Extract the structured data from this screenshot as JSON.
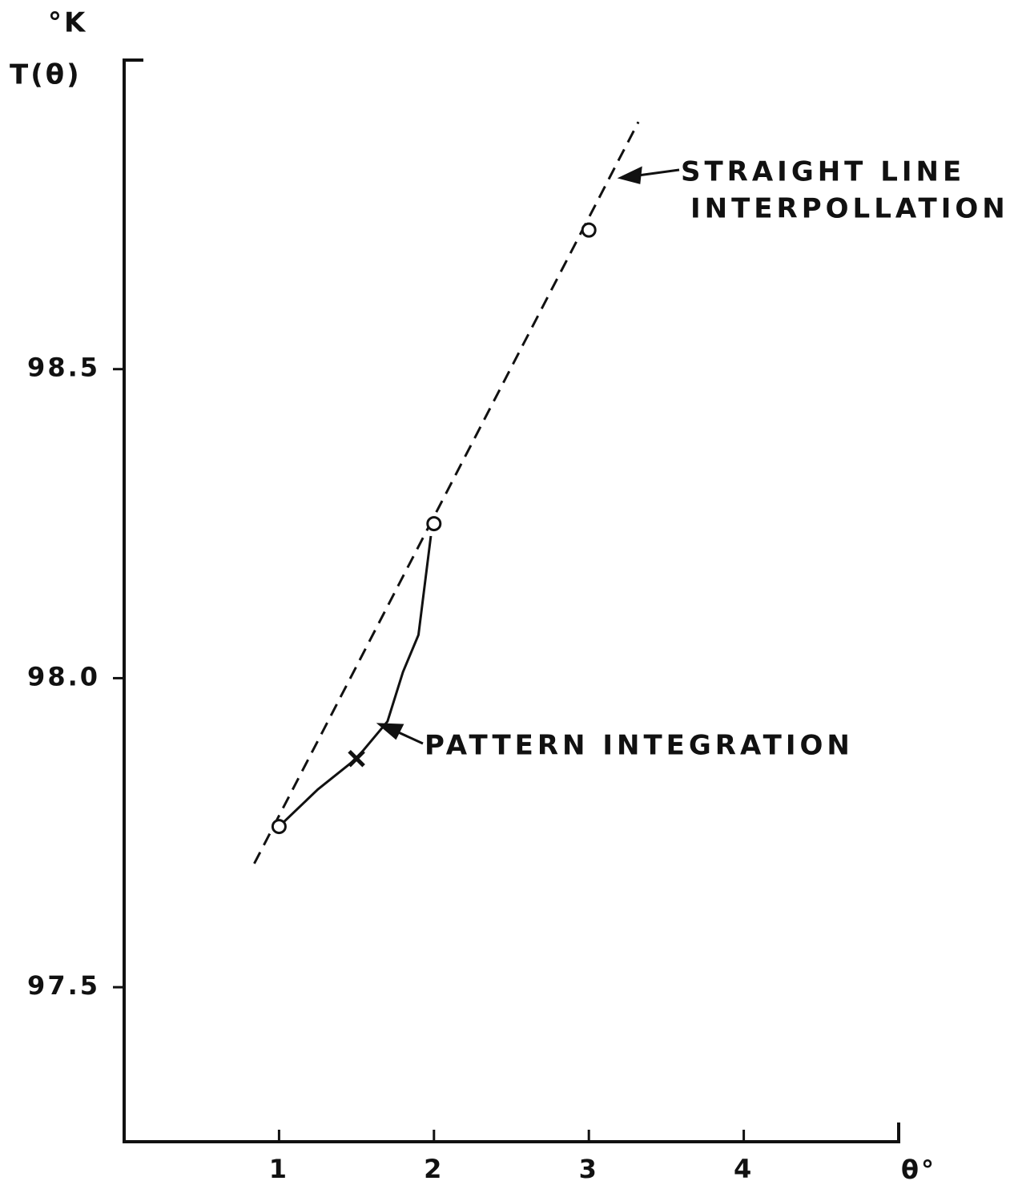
{
  "chart_data": {
    "type": "line",
    "ylabel_unit": "°K",
    "ylabel": "T(θ)",
    "xlabel": "θ°",
    "xlim": [
      0,
      5
    ],
    "xticks": [
      1,
      2,
      3,
      4
    ],
    "ylim": [
      97.25,
      99.0
    ],
    "yticks": [
      97.5,
      {
        "value": 98.0,
        "label": "98.0"
      },
      98.5
    ],
    "grid": false,
    "annotations": [
      "STRAIGHT LINE",
      "INTERPOLLATION",
      "PATTERN INTEGRATION"
    ],
    "series": [
      {
        "style": "dashed",
        "color": "#111",
        "x": [
          0.84,
          3.32
        ],
        "values": [
          97.7,
          98.9
        ]
      },
      {
        "style": "solid",
        "color": "#111",
        "x": [
          1,
          1.25,
          1.5,
          1.7,
          1.8,
          1.9,
          1.98
        ],
        "values": [
          97.76,
          97.82,
          97.87,
          97.93,
          98.01,
          98.07,
          98.23
        ]
      },
      {
        "marker": "circle",
        "color": "#111",
        "x": [
          1,
          2,
          3
        ],
        "values": [
          97.76,
          98.25,
          98.725
        ]
      },
      {
        "marker": "x",
        "color": "#111",
        "x": [
          1.5
        ],
        "values": [
          97.87
        ]
      }
    ]
  }
}
